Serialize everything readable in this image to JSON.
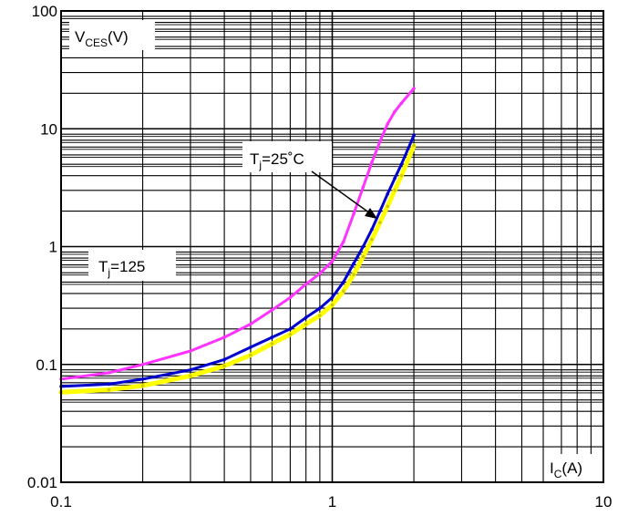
{
  "chart_data": {
    "type": "line",
    "title": "",
    "xscale": "log",
    "yscale": "log",
    "xlim": [
      0.1,
      10
    ],
    "ylim": [
      0.01,
      100
    ],
    "grid": true,
    "x_ticks": [
      "0.1",
      "1",
      "10"
    ],
    "y_ticks": [
      "100",
      "10",
      "1",
      "0.1",
      "0.01"
    ],
    "ylabel": {
      "main": "V",
      "sub": "CES",
      "unit": "(V)"
    },
    "xlabel": {
      "main": "I",
      "sub": "C",
      "unit": "(A)"
    },
    "annotations": [
      {
        "main": "T",
        "sub": "j",
        "rest": "=25˚C"
      },
      {
        "main": "T",
        "sub": "j",
        "rest": "=125"
      }
    ],
    "series": [
      {
        "color": "#ff33ff",
        "x": [
          0.1,
          0.15,
          0.2,
          0.3,
          0.4,
          0.5,
          0.6,
          0.7,
          0.8,
          0.9,
          1.0,
          1.1,
          1.2,
          1.3,
          1.4,
          1.5,
          1.6,
          1.7,
          1.8,
          2.0
        ],
        "y": [
          0.075,
          0.085,
          0.1,
          0.13,
          0.17,
          0.22,
          0.29,
          0.37,
          0.48,
          0.59,
          0.75,
          1.1,
          1.9,
          3.2,
          5.2,
          7.8,
          11,
          14,
          16.5,
          22
        ]
      },
      {
        "color": "#0000cc",
        "x": [
          0.1,
          0.15,
          0.2,
          0.3,
          0.4,
          0.5,
          0.6,
          0.7,
          0.8,
          0.9,
          1.0,
          1.1,
          1.2,
          1.3,
          1.4,
          1.5,
          1.6,
          1.7,
          1.8,
          2.0
        ],
        "y": [
          0.065,
          0.068,
          0.075,
          0.09,
          0.11,
          0.14,
          0.17,
          0.2,
          0.25,
          0.3,
          0.37,
          0.5,
          0.72,
          1.0,
          1.4,
          2.0,
          2.8,
          3.8,
          5.0,
          8.8
        ]
      },
      {
        "color": "#ffff00",
        "x": [
          0.1,
          0.15,
          0.2,
          0.3,
          0.4,
          0.5,
          0.6,
          0.7,
          0.8,
          0.9,
          1.0,
          1.1,
          1.2,
          1.3,
          1.4,
          1.5,
          1.6,
          1.7,
          1.8,
          2.0
        ],
        "y": [
          0.058,
          0.061,
          0.066,
          0.08,
          0.097,
          0.12,
          0.15,
          0.18,
          0.22,
          0.26,
          0.32,
          0.42,
          0.58,
          0.82,
          1.15,
          1.6,
          2.2,
          3.0,
          4.0,
          7.2
        ]
      }
    ]
  }
}
